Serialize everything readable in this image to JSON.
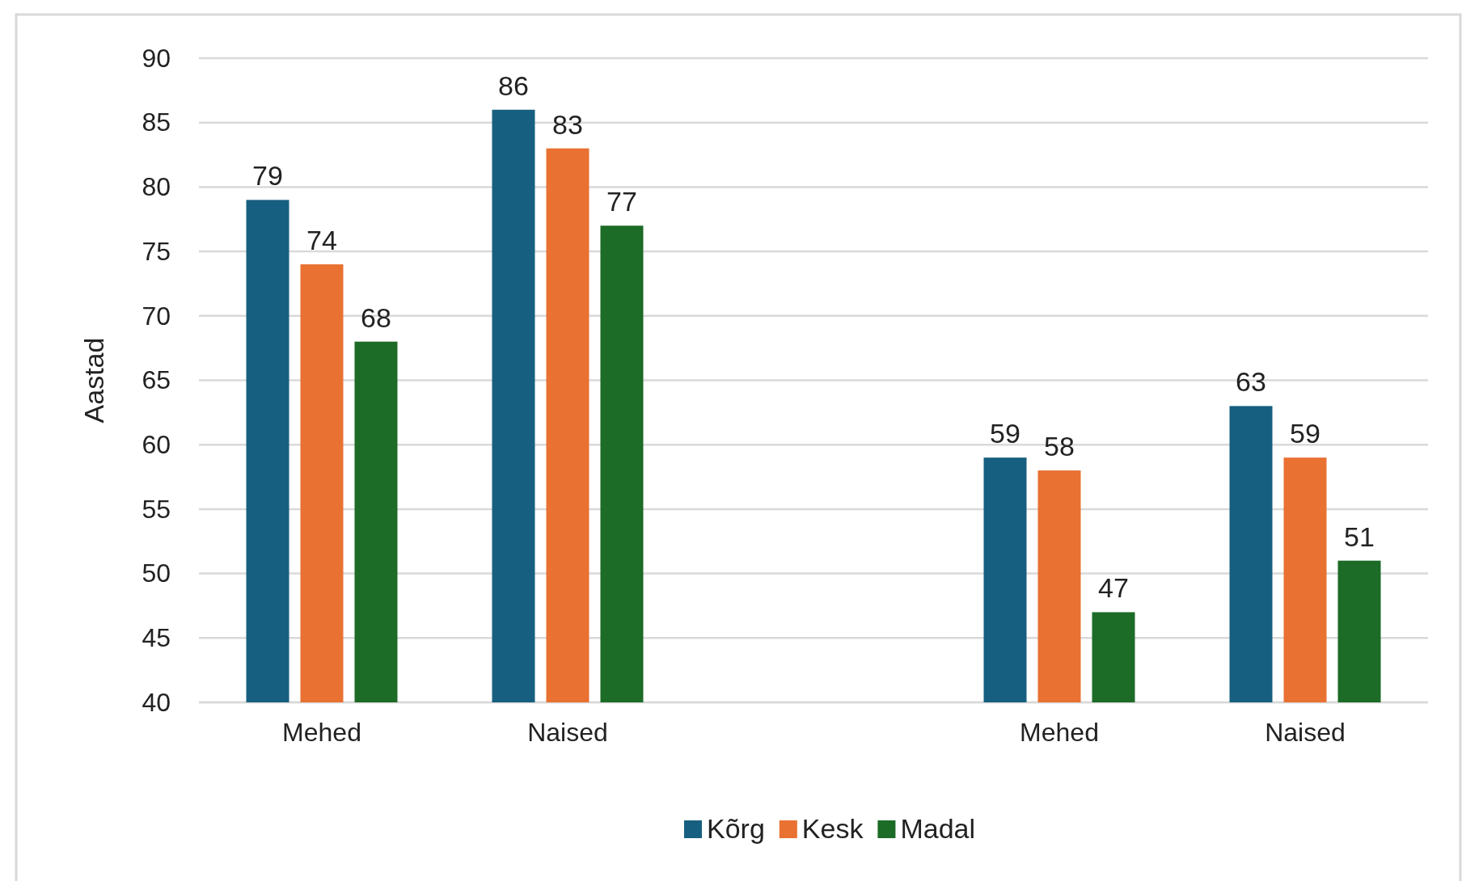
{
  "chart_data": {
    "type": "bar",
    "ylabel": "Aastad",
    "categories": [
      "Mehed",
      "Naised",
      null,
      "Mehed",
      "Naised"
    ],
    "series": [
      {
        "name": "Kõrg",
        "color": "#175f80",
        "values": [
          79,
          86,
          null,
          59,
          63
        ]
      },
      {
        "name": "Kesk",
        "color": "#e97132",
        "values": [
          74,
          83,
          null,
          58,
          59
        ]
      },
      {
        "name": "Madal",
        "color": "#1c6b27",
        "values": [
          68,
          77,
          null,
          47,
          51
        ]
      }
    ],
    "ylim": [
      40,
      90
    ],
    "yticks": [
      40,
      45,
      50,
      55,
      60,
      65,
      70,
      75,
      80,
      85,
      90
    ],
    "grid": "y",
    "legend": "bottom",
    "data_labels": true
  }
}
